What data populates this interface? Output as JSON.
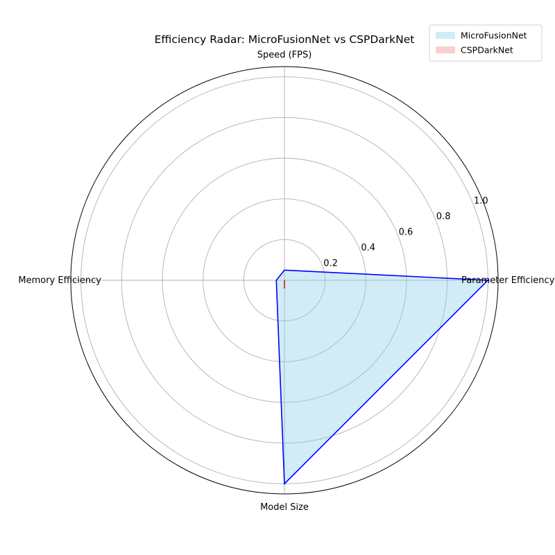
{
  "chart_data": {
    "type": "radar",
    "title": "Efficiency Radar: MicroFusionNet vs CSPDarkNet",
    "axes": [
      "Speed (FPS)",
      "Parameter Efficiency",
      "Model Size",
      "Memory Efficiency"
    ],
    "rlim": [
      0,
      1.05
    ],
    "rticks": [
      0.2,
      0.4,
      0.6,
      0.8,
      1.0
    ],
    "rtick_labels": [
      "0.2",
      "0.4",
      "0.6",
      "0.8",
      "1.0"
    ],
    "grid": true,
    "legend_position": "top-right",
    "series": [
      {
        "name": "MicroFusionNet",
        "values": [
          0.05,
          1.0,
          1.0,
          0.04
        ],
        "line_color": "#0000ff",
        "fill_color": "#87ceeb",
        "fill_opacity": 0.38
      },
      {
        "name": "CSPDarkNet",
        "values": [
          0.0,
          0.0,
          0.04,
          0.0
        ],
        "line_color": "#ff0000",
        "fill_color": "#f08080",
        "fill_opacity": 0.38
      }
    ]
  }
}
